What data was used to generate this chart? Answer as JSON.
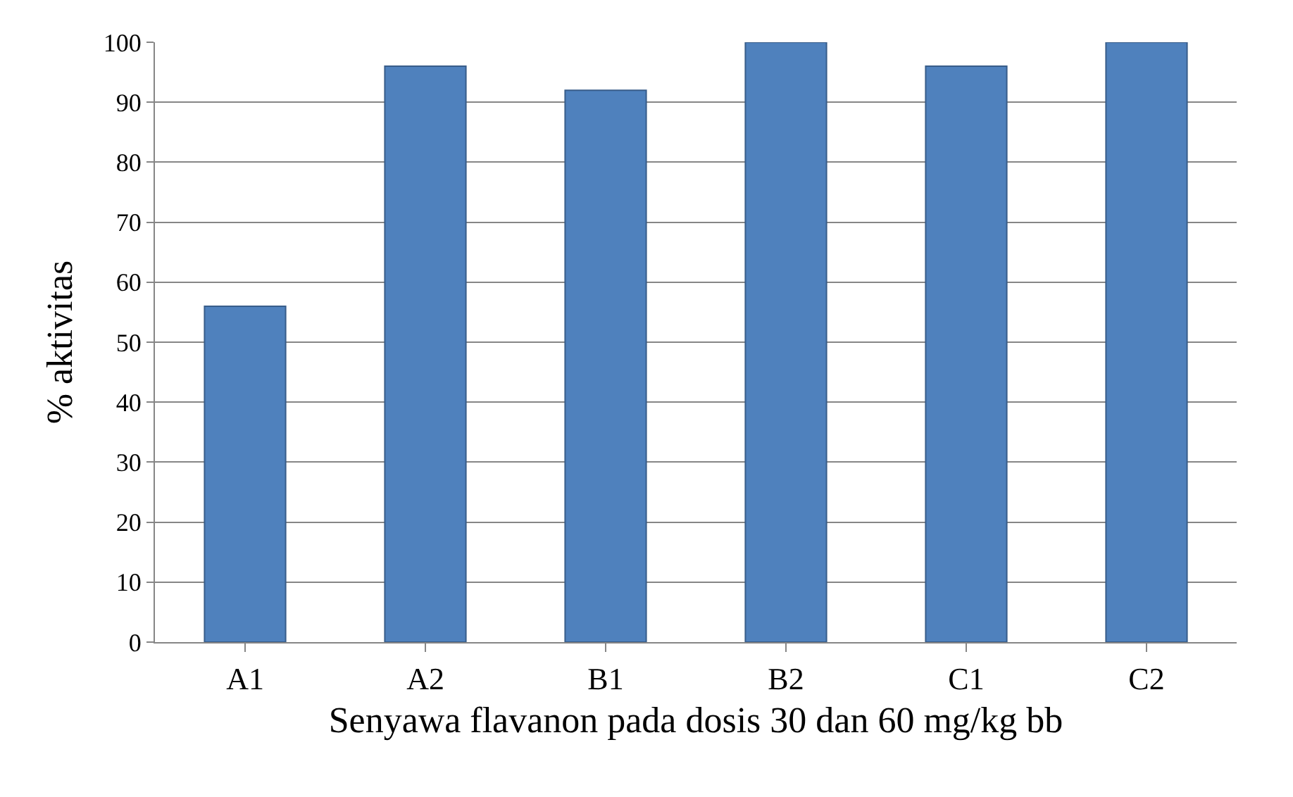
{
  "chart_data": {
    "type": "bar",
    "xlabel": "Senyawa flavanon pada dosis 30 dan 60 mg/kg bb",
    "ylabel": "% aktivitas",
    "categories": [
      "A1",
      "A2",
      "B1",
      "B2",
      "C1",
      "C2"
    ],
    "values": [
      56,
      96,
      92,
      100,
      96,
      100
    ],
    "color": "#4f81bd",
    "ylim": [
      0,
      100
    ],
    "yticks": [
      0,
      10,
      20,
      30,
      40,
      50,
      60,
      70,
      80,
      90,
      100
    ],
    "grid": "y"
  }
}
